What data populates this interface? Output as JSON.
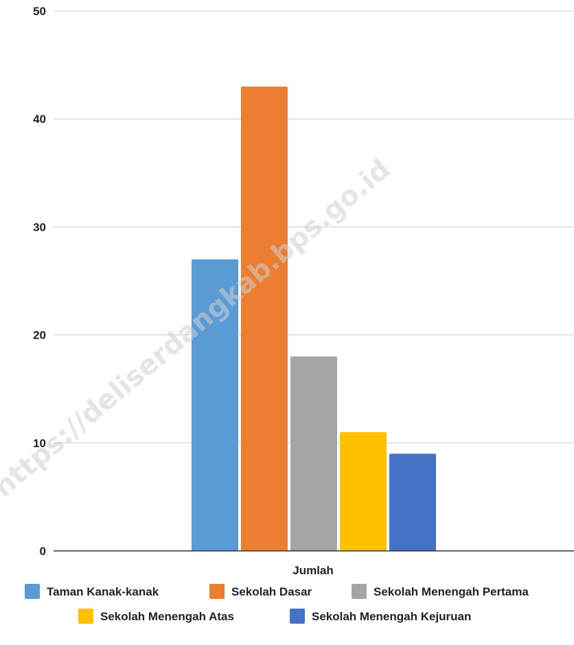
{
  "chart_data": {
    "type": "bar",
    "categories": [
      "Jumlah"
    ],
    "series": [
      {
        "name": "Taman Kanak-kanak",
        "values": [
          27
        ],
        "color": "#5B9BD5"
      },
      {
        "name": "Sekolah Dasar",
        "values": [
          43
        ],
        "color": "#ED7D31"
      },
      {
        "name": "Sekolah Menengah Pertama",
        "values": [
          18
        ],
        "color": "#A5A5A5"
      },
      {
        "name": "Sekolah Menengah Atas",
        "values": [
          11
        ],
        "color": "#FFC000"
      },
      {
        "name": "Sekolah Menengah Kejuruan",
        "values": [
          9
        ],
        "color": "#4472C4"
      }
    ],
    "yticks": [
      "0",
      "10",
      "20",
      "30",
      "40",
      "50"
    ],
    "ylim": [
      0,
      50
    ],
    "grid": true,
    "legend_position": "bottom"
  },
  "watermark": "https://deliserdangkab.bps.go.id"
}
